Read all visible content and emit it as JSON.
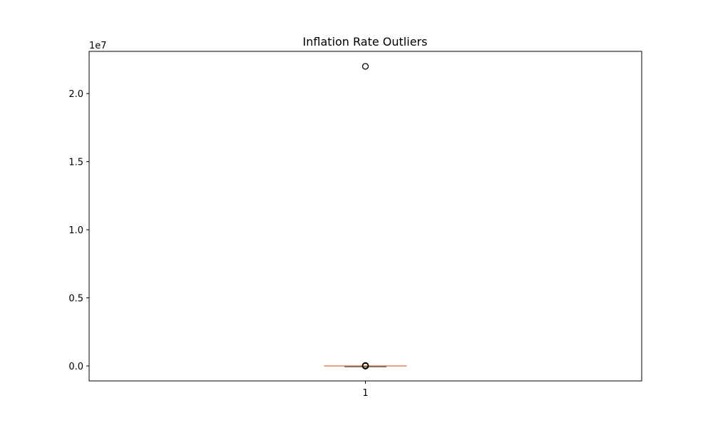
{
  "chart_data": {
    "type": "box",
    "title": "Inflation Rate Outliers",
    "xlabel": "",
    "ylabel": "",
    "categories": [
      "1"
    ],
    "y_axis": {
      "offset_label": "1e7",
      "ylim": [
        -1100000,
        23100000
      ],
      "ticks": [
        0,
        5000000,
        10000000,
        15000000,
        20000000
      ],
      "tick_labels": [
        "0.0",
        "0.5",
        "1.0",
        "1.5",
        "2.0"
      ]
    },
    "boxes": [
      {
        "category": "1",
        "whisker_low": 0,
        "q1": 0,
        "median": 5,
        "q3": 20,
        "whisker_high": 50,
        "outliers": [
          22000000,
          60,
          80,
          120,
          200,
          350,
          500,
          1000,
          2500,
          5000,
          10000,
          20000,
          30000
        ]
      }
    ],
    "grid": false,
    "colors": {
      "box": "#000000",
      "median": "#dd8452",
      "outlier_edge": "#000000"
    }
  }
}
